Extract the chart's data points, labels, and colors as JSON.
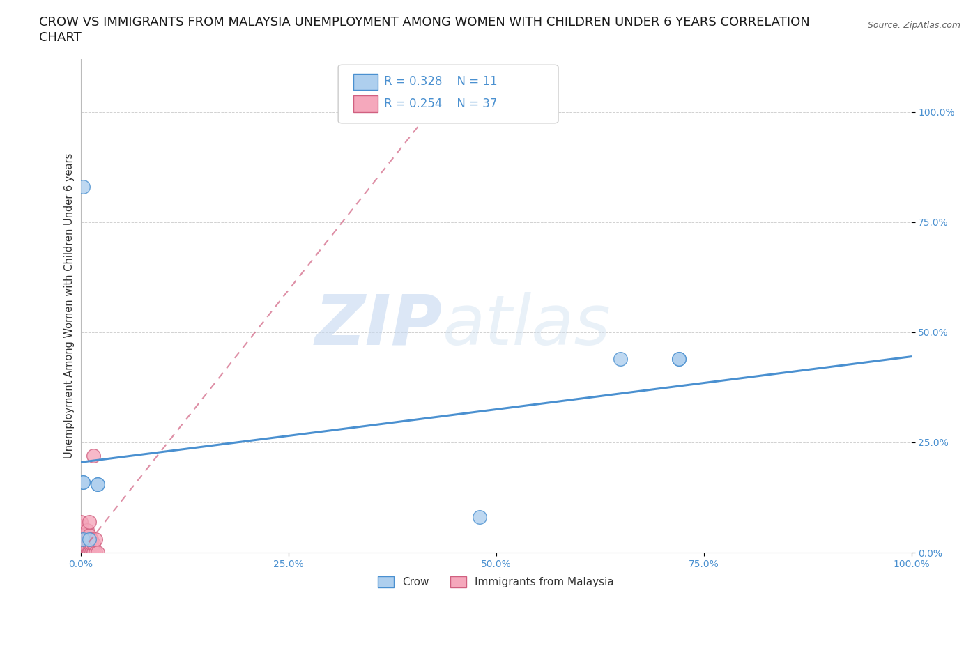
{
  "title_line1": "CROW VS IMMIGRANTS FROM MALAYSIA UNEMPLOYMENT AMONG WOMEN WITH CHILDREN UNDER 6 YEARS CORRELATION",
  "title_line2": "CHART",
  "source_text": "Source: ZipAtlas.com",
  "watermark_zip": "ZIP",
  "watermark_atlas": "atlas",
  "ylabel": "Unemployment Among Women with Children Under 6 years",
  "crow_R": 0.328,
  "crow_N": 11,
  "immigrants_R": 0.254,
  "immigrants_N": 37,
  "crow_color": "#aecfee",
  "crow_line_color": "#4a90d0",
  "immigrants_color": "#f5a8bc",
  "immigrants_line_color": "#d06080",
  "crow_points_x": [
    0.003,
    0.003,
    0.003,
    0.003,
    0.01,
    0.02,
    0.02,
    0.48,
    0.65,
    0.72,
    0.72
  ],
  "crow_points_y": [
    0.83,
    0.16,
    0.16,
    0.03,
    0.03,
    0.155,
    0.155,
    0.08,
    0.44,
    0.44,
    0.44
  ],
  "immigrants_points_x": [
    0.0,
    0.0,
    0.0,
    0.0,
    0.0,
    0.0,
    0.0,
    0.0,
    0.0,
    0.0,
    0.0,
    0.0,
    0.003,
    0.003,
    0.003,
    0.003,
    0.003,
    0.005,
    0.005,
    0.005,
    0.008,
    0.008,
    0.008,
    0.008,
    0.01,
    0.01,
    0.01,
    0.01,
    0.013,
    0.013,
    0.013,
    0.015,
    0.015,
    0.015,
    0.018,
    0.018,
    0.02
  ],
  "immigrants_points_y": [
    0.0,
    0.0,
    0.0,
    0.01,
    0.01,
    0.02,
    0.03,
    0.04,
    0.04,
    0.05,
    0.06,
    0.07,
    0.0,
    0.01,
    0.02,
    0.03,
    0.04,
    0.0,
    0.02,
    0.04,
    0.0,
    0.01,
    0.03,
    0.05,
    0.0,
    0.02,
    0.04,
    0.07,
    0.0,
    0.02,
    0.03,
    0.0,
    0.02,
    0.22,
    0.0,
    0.03,
    0.0
  ],
  "crow_trend_x": [
    0.0,
    1.0
  ],
  "crow_trend_y": [
    0.205,
    0.445
  ],
  "immigrants_trend_x": [
    0.0,
    0.42
  ],
  "immigrants_trend_y": [
    0.0,
    1.0
  ],
  "xmin": 0.0,
  "xmax": 1.0,
  "ymin": 0.0,
  "ymax": 1.12,
  "xticks": [
    0.0,
    0.25,
    0.5,
    0.75,
    1.0
  ],
  "yticks": [
    0.0,
    0.25,
    0.5,
    0.75,
    1.0
  ],
  "xtick_labels": [
    "0.0%",
    "25.0%",
    "50.0%",
    "75.0%",
    "100.0%"
  ],
  "ytick_labels": [
    "0.0%",
    "25.0%",
    "50.0%",
    "75.0%",
    "100.0%"
  ],
  "background_color": "#ffffff",
  "title_fontsize": 13,
  "axis_label_fontsize": 10.5,
  "tick_fontsize": 10,
  "legend_fontsize": 12
}
